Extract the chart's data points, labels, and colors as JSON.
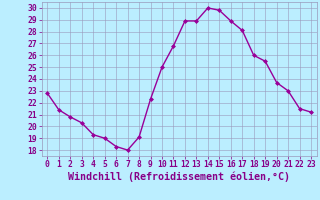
{
  "x": [
    0,
    1,
    2,
    3,
    4,
    5,
    6,
    7,
    8,
    9,
    10,
    11,
    12,
    13,
    14,
    15,
    16,
    17,
    18,
    19,
    20,
    21,
    22,
    23
  ],
  "y": [
    22.8,
    21.4,
    20.8,
    20.3,
    19.3,
    19.0,
    18.3,
    18.0,
    19.1,
    22.3,
    25.0,
    26.8,
    28.9,
    28.9,
    30.0,
    29.8,
    28.9,
    28.1,
    26.0,
    25.5,
    23.7,
    23.0,
    21.5,
    21.2
  ],
  "line_color": "#990099",
  "marker": "D",
  "marker_size": 2.0,
  "bg_color": "#bbeeff",
  "grid_color": "#9999bb",
  "yticks": [
    18,
    19,
    20,
    21,
    22,
    23,
    24,
    25,
    26,
    27,
    28,
    29,
    30
  ],
  "xlim": [
    -0.5,
    23.5
  ],
  "ylim": [
    17.5,
    30.5
  ],
  "xlabel": "Windchill (Refroidissement éolien,°C)",
  "xlabel_color": "#880088",
  "tick_color": "#880088",
  "tick_fontsize": 5.8,
  "xlabel_fontsize": 7.2,
  "spine_color": "#9999bb",
  "linewidth": 1.0
}
